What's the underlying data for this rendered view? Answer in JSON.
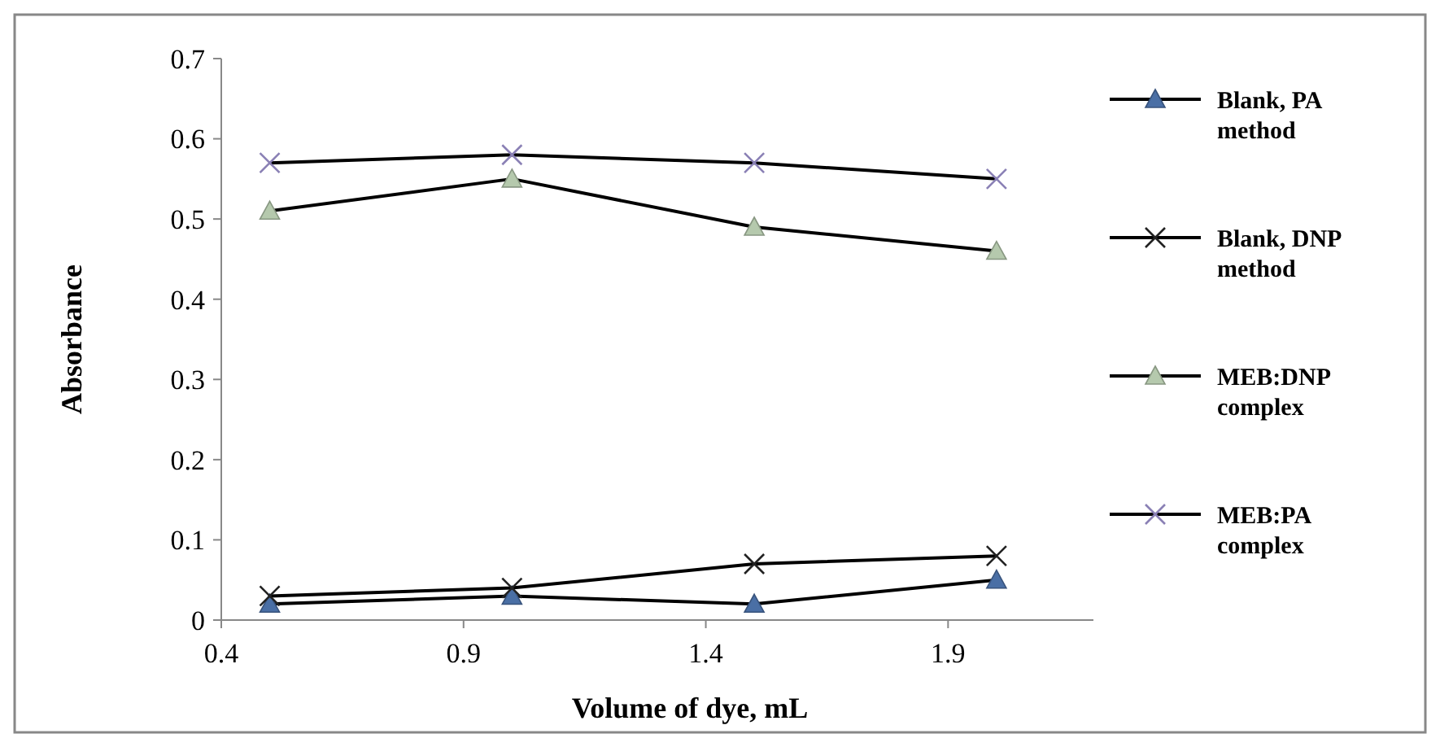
{
  "chart_data": {
    "type": "line",
    "xlabel": "Volume of dye, mL",
    "ylabel": "Absorbance",
    "x": [
      0.5,
      1.0,
      1.5,
      2.0
    ],
    "series": [
      {
        "name": "Blank, PA method",
        "color": "#4a6fa5",
        "marker": "triangle",
        "values": [
          0.02,
          0.03,
          0.02,
          0.05
        ]
      },
      {
        "name": "Blank, DNP method",
        "color": "#222222",
        "marker": "cross",
        "values": [
          0.03,
          0.04,
          0.07,
          0.08
        ]
      },
      {
        "name": "MEB:DNP complex",
        "color": "#b5c9ad",
        "marker": "triangle",
        "values": [
          0.51,
          0.55,
          0.49,
          0.46
        ]
      },
      {
        "name": "MEB:PA complex",
        "color": "#8a80b5",
        "marker": "cross",
        "values": [
          0.57,
          0.58,
          0.57,
          0.55
        ]
      }
    ],
    "xlim": [
      0.4,
      2.2
    ],
    "xticks": [
      0.4,
      0.9,
      1.4,
      1.9
    ],
    "ylim": [
      0,
      0.7
    ],
    "yticks": [
      0,
      0.1,
      0.2,
      0.3,
      0.4,
      0.5,
      0.6,
      0.7
    ],
    "grid": false,
    "legend": "right"
  }
}
